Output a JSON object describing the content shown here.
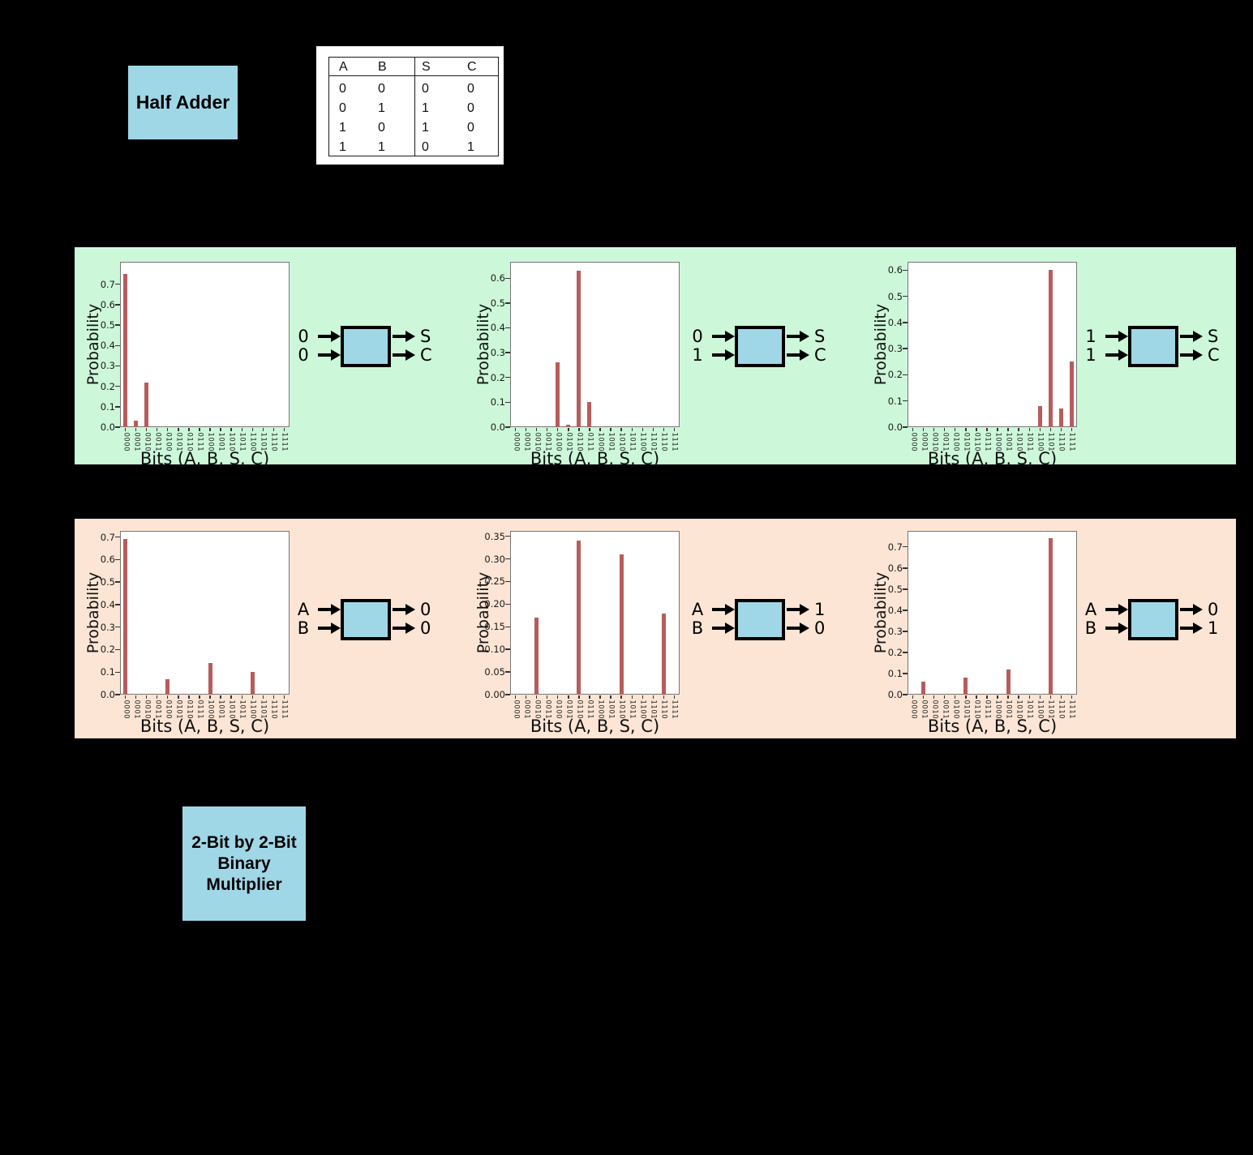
{
  "colors": {
    "background": "#000000",
    "panel_green": "#ccf8d9",
    "panel_orange": "#fce5d4",
    "box_blue": "#a0d7e7",
    "bar_red": "#b65d5c",
    "plot_background": "#ffffff",
    "text": "#111111"
  },
  "half_adder_label": "Half Adder",
  "truth_table": {
    "headers": [
      "A",
      "B",
      "S",
      "C"
    ],
    "rows": [
      [
        "0",
        "0",
        "0",
        "0"
      ],
      [
        "0",
        "1",
        "1",
        "0"
      ],
      [
        "1",
        "0",
        "1",
        "0"
      ],
      [
        "1",
        "1",
        "0",
        "1"
      ]
    ]
  },
  "multiplier_label_lines": [
    "2-Bit by 2-Bit",
    "Binary",
    "Multiplier"
  ],
  "chart_data": [
    {
      "type": "bar",
      "panel": "green",
      "xlabel": "Bits (A, B, S, C)",
      "ylabel": "Probability",
      "categories": [
        "0000",
        "0001",
        "0010",
        "0011",
        "0100",
        "0101",
        "0110",
        "0111",
        "1000",
        "1001",
        "1010",
        "1011",
        "1100",
        "1101",
        "1110",
        "1111"
      ],
      "values": [
        0.75,
        0.03,
        0.22,
        0,
        0,
        0,
        0,
        0,
        0,
        0,
        0,
        0,
        0,
        0,
        0,
        0
      ],
      "yticks": [
        "0.0",
        "0.1",
        "0.2",
        "0.3",
        "0.4",
        "0.5",
        "0.6",
        "0.7"
      ],
      "ylim": [
        0,
        0.81
      ],
      "diagram": {
        "inputs": [
          "0",
          "0"
        ],
        "outputs": [
          "S",
          "C"
        ]
      }
    },
    {
      "type": "bar",
      "panel": "green",
      "xlabel": "Bits (A, B, S, C)",
      "ylabel": "Probability",
      "categories": [
        "0000",
        "0001",
        "0010",
        "0011",
        "0100",
        "0101",
        "0110",
        "0111",
        "1000",
        "1001",
        "1010",
        "1011",
        "1100",
        "1101",
        "1110",
        "1111"
      ],
      "values": [
        0,
        0,
        0,
        0,
        0.26,
        0.01,
        0.63,
        0.1,
        0,
        0,
        0,
        0,
        0,
        0,
        0,
        0
      ],
      "yticks": [
        "0.0",
        "0.1",
        "0.2",
        "0.3",
        "0.4",
        "0.5",
        "0.6"
      ],
      "ylim": [
        0,
        0.666
      ],
      "diagram": {
        "inputs": [
          "0",
          "1"
        ],
        "outputs": [
          "S",
          "C"
        ]
      }
    },
    {
      "type": "bar",
      "panel": "green",
      "xlabel": "Bits (A, B, S, C)",
      "ylabel": "Probability",
      "categories": [
        "0000",
        "0001",
        "0010",
        "0011",
        "0100",
        "0101",
        "0110",
        "0111",
        "1000",
        "1001",
        "1010",
        "1011",
        "1100",
        "1101",
        "1110",
        "1111"
      ],
      "values": [
        0,
        0,
        0,
        0,
        0,
        0,
        0,
        0,
        0,
        0,
        0,
        0,
        0.08,
        0.6,
        0.07,
        0.25
      ],
      "yticks": [
        "0.0",
        "0.1",
        "0.2",
        "0.3",
        "0.4",
        "0.5",
        "0.6"
      ],
      "ylim": [
        0,
        0.632
      ],
      "diagram": {
        "inputs": [
          "1",
          "1"
        ],
        "outputs": [
          "S",
          "C"
        ]
      }
    },
    {
      "type": "bar",
      "panel": "orange",
      "xlabel": "Bits (A, B, S, C)",
      "ylabel": "Probability",
      "categories": [
        "0000",
        "0001",
        "0010",
        "0011",
        "0100",
        "0101",
        "0110",
        "0111",
        "1000",
        "1001",
        "1010",
        "1011",
        "1100",
        "1101",
        "1110",
        "1111"
      ],
      "values": [
        0.69,
        0,
        0,
        0,
        0.07,
        0,
        0,
        0,
        0.14,
        0,
        0,
        0,
        0.1,
        0,
        0,
        0
      ],
      "yticks": [
        "0.0",
        "0.1",
        "0.2",
        "0.3",
        "0.4",
        "0.5",
        "0.6",
        "0.7"
      ],
      "ylim": [
        0,
        0.727
      ],
      "diagram": {
        "inputs": [
          "A",
          "B"
        ],
        "outputs": [
          "0",
          "0"
        ]
      }
    },
    {
      "type": "bar",
      "panel": "orange",
      "xlabel": "Bits (A, B, S, C)",
      "ylabel": "Probability",
      "categories": [
        "0000",
        "0001",
        "0010",
        "0011",
        "0100",
        "0101",
        "0110",
        "0111",
        "1000",
        "1001",
        "1010",
        "1011",
        "1100",
        "1101",
        "1110",
        "1111"
      ],
      "values": [
        0,
        0,
        0.17,
        0,
        0,
        0,
        0.34,
        0,
        0,
        0,
        0.31,
        0,
        0,
        0,
        0.18,
        0
      ],
      "yticks": [
        "0.00",
        "0.05",
        "0.10",
        "0.15",
        "0.20",
        "0.25",
        "0.30",
        "0.35"
      ],
      "ylim": [
        0,
        0.362
      ],
      "diagram": {
        "inputs": [
          "A",
          "B"
        ],
        "outputs": [
          "1",
          "0"
        ]
      }
    },
    {
      "type": "bar",
      "panel": "orange",
      "xlabel": "Bits (A, B, S, C)",
      "ylabel": "Probability",
      "categories": [
        "0000",
        "0001",
        "0010",
        "0011",
        "0100",
        "0101",
        "0110",
        "0111",
        "1000",
        "1001",
        "1010",
        "1011",
        "1100",
        "1101",
        "1110",
        "1111"
      ],
      "values": [
        0,
        0.06,
        0,
        0,
        0,
        0.08,
        0,
        0,
        0,
        0.12,
        0,
        0,
        0,
        0.74,
        0,
        0
      ],
      "yticks": [
        "0.0",
        "0.1",
        "0.2",
        "0.3",
        "0.4",
        "0.5",
        "0.6",
        "0.7"
      ],
      "ylim": [
        0,
        0.776
      ],
      "diagram": {
        "inputs": [
          "A",
          "B"
        ],
        "outputs": [
          "0",
          "1"
        ]
      }
    }
  ]
}
